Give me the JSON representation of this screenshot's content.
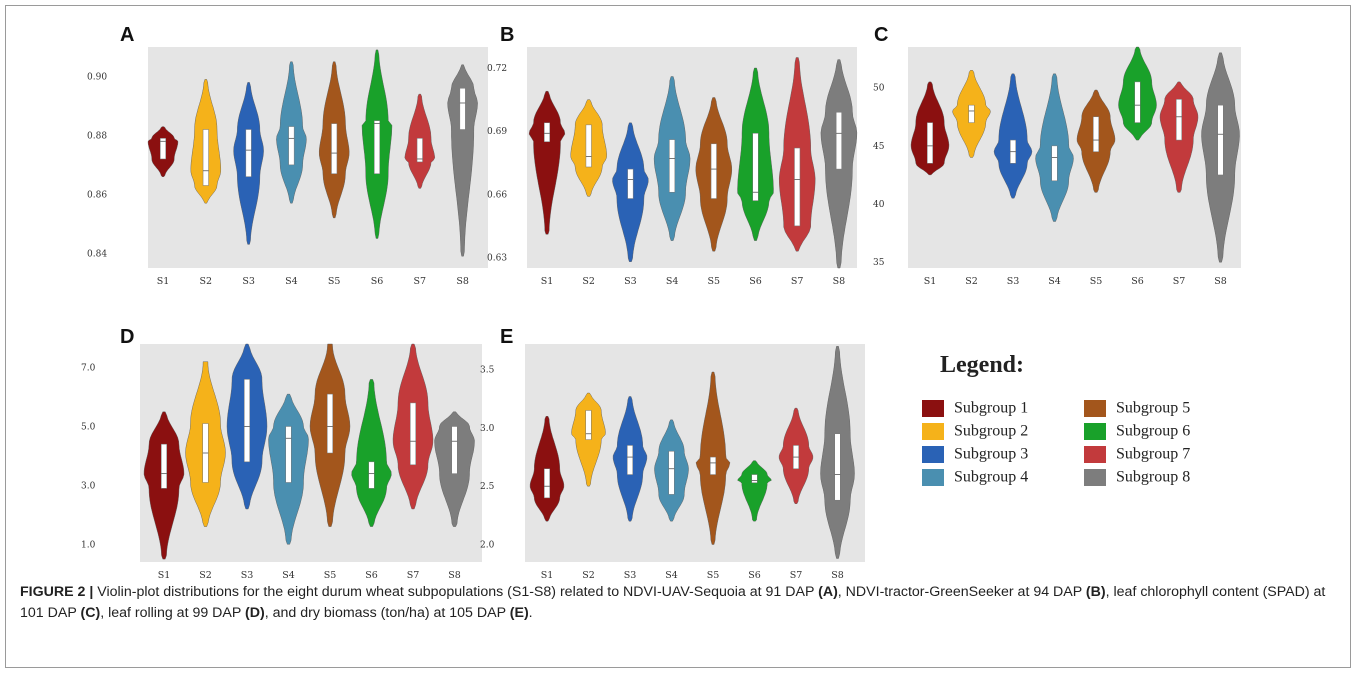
{
  "colors": {
    "S1": "#8b1010",
    "S2": "#f5b21a",
    "S3": "#2a62b5",
    "S4": "#4a8fb0",
    "S5": "#a3561c",
    "S6": "#19a12a",
    "S7": "#c23a3c",
    "S8": "#7d7d7d"
  },
  "legend": {
    "title": "Legend:",
    "items": [
      {
        "label": "Subgroup 1",
        "color": "#8b1010"
      },
      {
        "label": "Subgroup 2",
        "color": "#f5b21a"
      },
      {
        "label": "Subgroup 3",
        "color": "#2a62b5"
      },
      {
        "label": "Subgroup 4",
        "color": "#4a8fb0"
      },
      {
        "label": "Subgroup 5",
        "color": "#a3561c"
      },
      {
        "label": "Subgroup 6",
        "color": "#19a12a"
      },
      {
        "label": "Subgroup 7",
        "color": "#c23a3c"
      },
      {
        "label": "Subgroup 8",
        "color": "#7d7d7d"
      }
    ]
  },
  "caption": {
    "label": "FIGURE 2 |",
    "t1": " Violin-plot distributions for the eight durum wheat subpopulations (S1-S8) related to NDVI-UAV-Sequoia at 91 DAP ",
    "r1": "(A)",
    "t2": ", NDVI-tractor-GreenSeeker at 94 DAP ",
    "r2": "(B)",
    "t3": ", leaf chlorophyll content (SPAD) at 101 DAP ",
    "r3": "(C)",
    "t4": ", leaf rolling at 99 DAP ",
    "r4": "(D)",
    "t5": ", and dry biomass (ton/ha) at 105 DAP ",
    "r5": "(E)",
    "t6": "."
  },
  "chart_data": [
    {
      "panel": "A",
      "type": "violin",
      "categories": [
        "S1",
        "S2",
        "S3",
        "S4",
        "S5",
        "S6",
        "S7",
        "S8"
      ],
      "ylim": [
        0.835,
        0.91
      ],
      "yticks": [
        0.84,
        0.86,
        0.88,
        0.9
      ],
      "ytick_labels": [
        "0.84",
        "0.86",
        "0.88",
        "0.90"
      ],
      "series": [
        {
          "min": 0.866,
          "q1": 0.872,
          "median": 0.878,
          "q3": 0.879,
          "max": 0.883
        },
        {
          "min": 0.857,
          "q1": 0.863,
          "median": 0.868,
          "q3": 0.882,
          "max": 0.899
        },
        {
          "min": 0.843,
          "q1": 0.866,
          "median": 0.875,
          "q3": 0.882,
          "max": 0.898
        },
        {
          "min": 0.857,
          "q1": 0.87,
          "median": 0.879,
          "q3": 0.883,
          "max": 0.905
        },
        {
          "min": 0.852,
          "q1": 0.867,
          "median": 0.874,
          "q3": 0.884,
          "max": 0.905
        },
        {
          "min": 0.845,
          "q1": 0.867,
          "median": 0.884,
          "q3": 0.885,
          "max": 0.909
        },
        {
          "min": 0.862,
          "q1": 0.871,
          "median": 0.872,
          "q3": 0.879,
          "max": 0.894
        },
        {
          "min": 0.839,
          "q1": 0.882,
          "median": 0.891,
          "q3": 0.896,
          "max": 0.904
        }
      ]
    },
    {
      "panel": "B",
      "type": "violin",
      "categories": [
        "S1",
        "S2",
        "S3",
        "S4",
        "S5",
        "S6",
        "S7",
        "S8"
      ],
      "ylim": [
        0.625,
        0.73
      ],
      "yticks": [
        0.63,
        0.66,
        0.69,
        0.72
      ],
      "ytick_labels": [
        "0.63",
        "0.66",
        "0.69",
        "0.72"
      ],
      "series": [
        {
          "min": 0.641,
          "q1": 0.685,
          "median": 0.689,
          "q3": 0.694,
          "max": 0.709
        },
        {
          "min": 0.659,
          "q1": 0.673,
          "median": 0.678,
          "q3": 0.693,
          "max": 0.705
        },
        {
          "min": 0.628,
          "q1": 0.658,
          "median": 0.667,
          "q3": 0.672,
          "max": 0.694
        },
        {
          "min": 0.638,
          "q1": 0.661,
          "median": 0.677,
          "q3": 0.686,
          "max": 0.716
        },
        {
          "min": 0.633,
          "q1": 0.658,
          "median": 0.672,
          "q3": 0.684,
          "max": 0.706
        },
        {
          "min": 0.638,
          "q1": 0.657,
          "median": 0.661,
          "q3": 0.689,
          "max": 0.72
        },
        {
          "min": 0.633,
          "q1": 0.645,
          "median": 0.667,
          "q3": 0.682,
          "max": 0.725
        },
        {
          "min": 0.625,
          "q1": 0.672,
          "median": 0.689,
          "q3": 0.699,
          "max": 0.724
        }
      ]
    },
    {
      "panel": "C",
      "type": "violin",
      "categories": [
        "S1",
        "S2",
        "S3",
        "S4",
        "S5",
        "S6",
        "S7",
        "S8"
      ],
      "ylim": [
        34.5,
        53.5
      ],
      "yticks": [
        35,
        40,
        45,
        50
      ],
      "ytick_labels": [
        "35",
        "40",
        "45",
        "50"
      ],
      "series": [
        {
          "min": 42.5,
          "q1": 43.5,
          "median": 45,
          "q3": 47,
          "max": 50.5
        },
        {
          "min": 44,
          "q1": 47,
          "median": 48,
          "q3": 48.5,
          "max": 51.5
        },
        {
          "min": 40.5,
          "q1": 43.5,
          "median": 44.5,
          "q3": 45.5,
          "max": 51.2
        },
        {
          "min": 38.5,
          "q1": 42,
          "median": 44,
          "q3": 45,
          "max": 51.2
        },
        {
          "min": 41,
          "q1": 44.5,
          "median": 45.5,
          "q3": 47.5,
          "max": 49.8
        },
        {
          "min": 45.5,
          "q1": 47,
          "median": 48.5,
          "q3": 50.5,
          "max": 53.5
        },
        {
          "min": 41,
          "q1": 45.5,
          "median": 47.5,
          "q3": 49,
          "max": 50.5
        },
        {
          "min": 35,
          "q1": 42.5,
          "median": 46,
          "q3": 48.5,
          "max": 53
        }
      ]
    },
    {
      "panel": "D",
      "type": "violin",
      "categories": [
        "S1",
        "S2",
        "S3",
        "S4",
        "S5",
        "S6",
        "S7",
        "S8"
      ],
      "ylim": [
        0.4,
        7.8
      ],
      "yticks": [
        1,
        3,
        5,
        7
      ],
      "ytick_labels": [
        "1.0",
        "3.0",
        "5.0",
        "7.0"
      ],
      "series": [
        {
          "min": 0.5,
          "q1": 2.9,
          "median": 3.4,
          "q3": 4.4,
          "max": 5.5
        },
        {
          "min": 1.6,
          "q1": 3.1,
          "median": 4.1,
          "q3": 5.1,
          "max": 7.2
        },
        {
          "min": 2.2,
          "q1": 3.8,
          "median": 5,
          "q3": 6.6,
          "max": 7.8
        },
        {
          "min": 1,
          "q1": 3.1,
          "median": 4.6,
          "q3": 5,
          "max": 6.1
        },
        {
          "min": 1.6,
          "q1": 4.1,
          "median": 5,
          "q3": 6.1,
          "max": 7.8
        },
        {
          "min": 1.6,
          "q1": 2.9,
          "median": 3.4,
          "q3": 3.8,
          "max": 6.6
        },
        {
          "min": 2.2,
          "q1": 3.7,
          "median": 4.5,
          "q3": 5.8,
          "max": 7.8
        },
        {
          "min": 1.6,
          "q1": 3.4,
          "median": 4.5,
          "q3": 5,
          "max": 5.5
        }
      ]
    },
    {
      "panel": "E",
      "type": "violin",
      "categories": [
        "S1",
        "S2",
        "S3",
        "S4",
        "S5",
        "S6",
        "S7",
        "S8"
      ],
      "ylim": [
        1.85,
        3.72
      ],
      "yticks": [
        2,
        2.5,
        3,
        3.5
      ],
      "ytick_labels": [
        "2.0",
        "2.5",
        "3.0",
        "3.5"
      ],
      "series": [
        {
          "min": 2.2,
          "q1": 2.4,
          "median": 2.5,
          "q3": 2.65,
          "max": 3.1
        },
        {
          "min": 2.5,
          "q1": 2.9,
          "median": 2.95,
          "q3": 3.15,
          "max": 3.3
        },
        {
          "min": 2.2,
          "q1": 2.6,
          "median": 2.75,
          "q3": 2.85,
          "max": 3.27
        },
        {
          "min": 2.2,
          "q1": 2.43,
          "median": 2.65,
          "q3": 2.8,
          "max": 3.07
        },
        {
          "min": 2,
          "q1": 2.6,
          "median": 2.7,
          "q3": 2.75,
          "max": 3.48
        },
        {
          "min": 2.2,
          "q1": 2.53,
          "median": 2.55,
          "q3": 2.6,
          "max": 2.72
        },
        {
          "min": 2.35,
          "q1": 2.65,
          "median": 2.75,
          "q3": 2.85,
          "max": 3.17
        },
        {
          "min": 1.88,
          "q1": 2.38,
          "median": 2.6,
          "q3": 2.95,
          "max": 3.7
        }
      ]
    }
  ]
}
